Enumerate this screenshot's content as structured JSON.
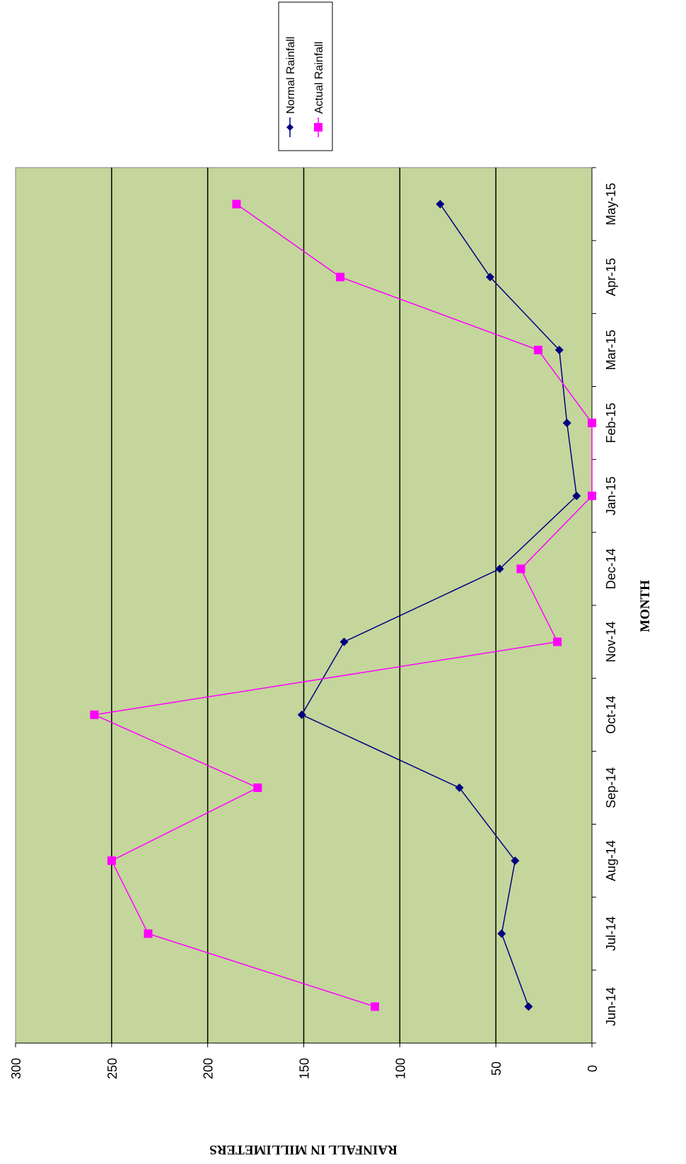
{
  "chart_data": {
    "type": "line",
    "orientation": "rotated-90-clockwise",
    "categories": [
      "Jun-14",
      "Jul-14",
      "Aug-14",
      "Sep-14",
      "Oct-14",
      "Nov-14",
      "Dec-14",
      "Jan-15",
      "Feb-15",
      "Mar-15",
      "Apr-15",
      "May-15"
    ],
    "xlabel": "MONTH",
    "ylabel": "RAINFALL IN MILLIMETERS",
    "ylim": [
      0,
      300
    ],
    "yticks": [
      0,
      50,
      100,
      150,
      200,
      250,
      300
    ],
    "grid": true,
    "legend_position": "top-right",
    "plot_background": "#c4d69b",
    "series": [
      {
        "name": "Normal Rainfall",
        "color": "#000080",
        "marker": "diamond",
        "values": [
          33,
          47,
          40,
          69,
          151,
          129,
          48,
          8,
          13,
          17,
          53,
          79
        ]
      },
      {
        "name": "Actual Rainfall",
        "color": "#ff00ff",
        "marker": "square",
        "values": [
          113,
          231,
          250,
          174,
          259,
          18,
          37,
          0,
          0,
          28,
          131,
          185
        ]
      }
    ]
  }
}
